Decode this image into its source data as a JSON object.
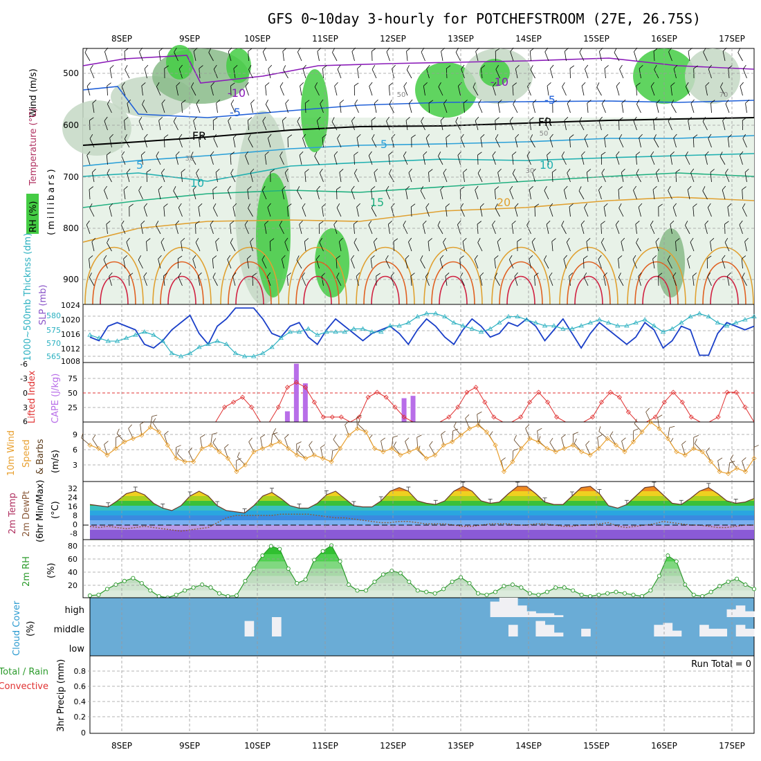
{
  "title": "GFS 0~10day 3-hourly for POTCHEFSTROOM (27E, 26.75S)",
  "days": [
    "8SEP",
    "9SEP",
    "10SEP",
    "11SEP",
    "12SEP",
    "13SEP",
    "14SEP",
    "15SEP",
    "16SEP",
    "17SEP"
  ],
  "colors": {
    "frame": "#000000",
    "grid": "#9a9a9a",
    "slp": "#1a3fc8",
    "thickness": "#2ab0c0",
    "lifted_index": "#e03030",
    "cape": "#b86ee8",
    "wind10m": "#e8a030",
    "barb": "#5a3a1a",
    "rh2m": "#2a9a2a",
    "dewpt": "#8a5a3a",
    "cloud_bg": "#6aacd6",
    "cloud": "#f0f0f4",
    "rh_shade_1": "#e8f2e8",
    "rh_shade_2": "#c4d8c4",
    "rh_shade_3": "#88bb88",
    "rh_shade_4": "#44cc44",
    "iso_m10": "#8a1ab8",
    "iso_m5": "#2060d8",
    "iso_fr": "#000000",
    "iso_5": "#2aa0d8",
    "iso_10": "#20b0b0",
    "iso_15": "#20b080",
    "iso_20": "#e0a030",
    "iso_25": "#e06020",
    "iso_30": "#d02040"
  },
  "upper": {
    "ylabel_wind": "Wind (m/s)",
    "ylabel_temp": "Temperature (°C)",
    "ylabel_rh": "RH (%)",
    "ylabel_mb": "(millibars)",
    "yticks": [
      "500",
      "600",
      "700",
      "800",
      "900"
    ],
    "contour_labels": [
      "-10",
      "-5",
      "FR",
      "5",
      "10",
      "15",
      "20",
      "-10",
      "-5",
      "FR",
      "5",
      "10",
      "50",
      "30",
      "50",
      "30",
      "70",
      "-5",
      "5"
    ]
  },
  "panel1": {
    "ylabel_slp": "SLP (mb)",
    "ylabel_thick": "1000~500mb Thicknss (dm)",
    "left_ticks": [
      "580",
      "575",
      "570",
      "565"
    ],
    "right_ticks": [
      "1024",
      "1020",
      "1016",
      "1012",
      "1008"
    ]
  },
  "panel2": {
    "ylabel_li": "Lifted Index",
    "ylabel_cape": "CAPE (J/kg)",
    "left_ticks": [
      "-6",
      "-3",
      "0",
      "3",
      "6"
    ],
    "right_ticks": [
      "75",
      "50",
      "25"
    ]
  },
  "panel3": {
    "ylabel_wind": "10m Wind",
    "ylabel_speed": "Speed",
    "ylabel_barbs": "& Barbs",
    "units": "(m/s)",
    "ticks": [
      "9",
      "6",
      "3"
    ]
  },
  "panel4": {
    "ylabel_temp": "2m Temp",
    "ylabel_dew": "2m DewPt",
    "ylabel_minmax": "(6hr Min/Max)",
    "units": "(°C)",
    "ticks": [
      "32",
      "24",
      "16",
      "8",
      "0",
      "-8"
    ]
  },
  "panel5": {
    "ylabel": "2m RH",
    "units": "(%)",
    "ticks": [
      "80",
      "60",
      "40",
      "20"
    ]
  },
  "panel6": {
    "ylabel": "Cloud Cover",
    "units": "(%)",
    "ticks": [
      "high",
      "middle",
      "low"
    ]
  },
  "panel7": {
    "ylabel_total": "Total / Rain",
    "ylabel_conv": "Convective",
    "ylabel_precip": "3hr Precip (mm)",
    "ticks": [
      "0.8",
      "0.6",
      "0.4",
      "0.2",
      "0"
    ],
    "run_total": "Run Total = 0"
  },
  "chart_data": [
    {
      "type": "line",
      "title": "SLP (mb) / 1000~500mb Thicknss (dm)",
      "x": "3-hourly, 8SEP~17SEP",
      "series": [
        {
          "name": "SLP (mb)",
          "axis": "right",
          "ylim": [
            1008,
            1024
          ],
          "values": [
            1015,
            1014,
            1018,
            1019,
            1018,
            1017,
            1013,
            1012,
            1014,
            1017,
            1019,
            1021,
            1016,
            1013,
            1018,
            1020,
            1023,
            1023,
            1023,
            1020,
            1016,
            1015,
            1018,
            1019,
            1015,
            1013,
            1017,
            1020,
            1018,
            1016,
            1014,
            1016,
            1017,
            1018,
            1016,
            1013,
            1017,
            1020,
            1018,
            1015,
            1013,
            1017,
            1020,
            1018,
            1015,
            1016,
            1019,
            1018,
            1020,
            1018,
            1014,
            1017,
            1020,
            1016,
            1012,
            1016,
            1019,
            1017,
            1015,
            1013,
            1015,
            1019,
            1017,
            1012,
            1014,
            1018,
            1017,
            1010,
            1010,
            1016,
            1019,
            1018,
            1017,
            1018
          ]
        },
        {
          "name": "1000~500mb Thicknss (dm)",
          "axis": "left",
          "ylim": [
            563,
            582
          ],
          "values": [
            572,
            571,
            570,
            570,
            571,
            572,
            573,
            572,
            570,
            566,
            565,
            566,
            568,
            569,
            570,
            569,
            566,
            565,
            565,
            566,
            568,
            571,
            573,
            573,
            574,
            572,
            573,
            573,
            573,
            574,
            574,
            573,
            573,
            575,
            575,
            576,
            578,
            579,
            579,
            578,
            576,
            575,
            574,
            573,
            574,
            576,
            578,
            578,
            577,
            576,
            575,
            575,
            574,
            574,
            575,
            576,
            577,
            576,
            575,
            575,
            576,
            577,
            575,
            573,
            574,
            576,
            578,
            579,
            578,
            576,
            575,
            576,
            577,
            578
          ]
        }
      ]
    },
    {
      "type": "bar",
      "title": "Lifted Index / CAPE (J/kg)",
      "series": [
        {
          "name": "CAPE (J/kg)",
          "axis": "right",
          "ylim": [
            0,
            100
          ],
          "values": [
            0,
            0,
            0,
            0,
            0,
            0,
            0,
            0,
            0,
            0,
            0,
            0,
            0,
            0,
            0,
            0,
            0,
            0,
            0,
            0,
            0,
            0,
            18,
            98,
            65,
            0,
            0,
            0,
            0,
            0,
            0,
            0,
            0,
            0,
            0,
            40,
            44,
            0,
            0,
            0,
            0,
            0,
            0,
            0,
            0,
            0,
            0,
            0,
            0,
            0,
            0,
            0,
            0,
            0,
            0,
            0,
            0,
            0,
            0,
            0,
            0,
            0,
            0,
            0,
            0,
            0,
            0,
            0,
            0,
            0,
            0,
            0,
            0,
            0,
            0
          ]
        },
        {
          "name": "Lifted Index",
          "axis": "left",
          "ylim": [
            6,
            -6
          ],
          "values": [
            6,
            6,
            6,
            6,
            6,
            6,
            6,
            6,
            6,
            6,
            6,
            6,
            6,
            6,
            6,
            3,
            2,
            1,
            3,
            6,
            6,
            3,
            -1,
            -2,
            -1,
            2,
            5,
            5,
            5,
            6,
            5,
            1,
            0,
            1,
            3,
            5,
            6,
            6,
            6,
            6,
            5,
            3,
            0,
            -1,
            2,
            5,
            6,
            6,
            5,
            2,
            0,
            2,
            5,
            6,
            6,
            6,
            5,
            2,
            0,
            1,
            4,
            6,
            6,
            5,
            2,
            0,
            2,
            5,
            6,
            6,
            5,
            0,
            0,
            3,
            6
          ]
        }
      ]
    },
    {
      "type": "line",
      "title": "10m Wind Speed & Barbs (m/s)",
      "ylim": [
        1,
        10
      ],
      "series": [
        {
          "name": "10m Wind Speed",
          "values": [
            6.5,
            6,
            5,
            6,
            7,
            7.5,
            8,
            9.2,
            8.5,
            6.5,
            4.5,
            4,
            4,
            6,
            6.5,
            5.5,
            4.5,
            2.5,
            3.5,
            5.5,
            6,
            6.5,
            7,
            6,
            5,
            4.5,
            5,
            4.5,
            4,
            6,
            8,
            9,
            8.5,
            6,
            5.5,
            6,
            5,
            5.5,
            6,
            4.5,
            5,
            6.5,
            7,
            8,
            9,
            9.5,
            8.5,
            6.5,
            2.5,
            4,
            6,
            7.5,
            7,
            6,
            5.5,
            6,
            6.5,
            5.5,
            5,
            6,
            7.5,
            6.5,
            5.5,
            7,
            8.5,
            10,
            9,
            7.5,
            5.5,
            5,
            6,
            5.5,
            4,
            2.5,
            2.2,
            3,
            2.5,
            4.5
          ]
        }
      ]
    },
    {
      "type": "area",
      "title": "2m Temp / 2m DewPt (6hr Min/Max) (°C)",
      "ylim": [
        -12,
        36
      ],
      "series": [
        {
          "name": "2m Temp",
          "values": [
            17,
            16,
            15,
            20,
            26,
            28,
            25,
            18,
            14,
            12,
            16,
            24,
            28,
            24,
            16,
            12,
            11,
            10,
            16,
            24,
            27,
            22,
            16,
            14,
            14,
            18,
            25,
            28,
            22,
            16,
            15,
            15,
            20,
            28,
            31,
            28,
            20,
            18,
            17,
            20,
            28,
            32,
            28,
            20,
            18,
            19,
            26,
            32,
            32,
            26,
            19,
            17,
            17,
            24,
            31,
            32,
            26,
            16,
            14,
            17,
            24,
            31,
            32,
            25,
            18,
            17,
            22,
            28,
            31,
            26,
            20,
            18,
            19,
            22
          ]
        },
        {
          "name": "2m DewPt",
          "values": [
            -1,
            -2,
            -1,
            -2,
            -3,
            -2,
            -1,
            -2,
            -3,
            -4,
            -5,
            -4,
            -3,
            -2,
            2,
            6,
            8,
            8,
            8,
            8,
            8,
            9,
            9,
            9,
            9,
            8,
            7,
            6,
            6,
            5,
            4,
            3,
            2,
            2,
            3,
            3,
            2,
            1,
            1,
            1,
            0,
            -1,
            -1,
            0,
            1,
            1,
            1,
            0,
            0,
            1,
            1,
            0,
            -1,
            -1,
            0,
            0,
            1,
            2,
            -1,
            -2,
            -1,
            0,
            1,
            3,
            2,
            1,
            0,
            0,
            -1,
            -2,
            -2,
            -1,
            0,
            0
          ]
        }
      ]
    },
    {
      "type": "area",
      "title": "2m RH (%)",
      "ylim": [
        10,
        90
      ],
      "series": [
        {
          "name": "2m RH",
          "values": [
            13,
            14,
            22,
            28,
            33,
            37,
            30,
            20,
            12,
            10,
            14,
            20,
            24,
            28,
            24,
            16,
            12,
            13,
            33,
            50,
            68,
            81,
            77,
            50,
            30,
            35,
            62,
            74,
            82,
            60,
            28,
            20,
            20,
            32,
            42,
            47,
            44,
            32,
            20,
            18,
            16,
            22,
            32,
            38,
            30,
            16,
            14,
            18,
            26,
            28,
            24,
            16,
            14,
            18,
            24,
            24,
            20,
            14,
            12,
            14,
            16,
            18,
            16,
            14,
            12,
            20,
            40,
            68,
            60,
            28,
            14,
            12,
            18,
            26,
            32,
            36,
            28,
            22
          ]
        }
      ]
    },
    {
      "type": "bar",
      "title": "Cloud Cover (%)",
      "series": [
        {
          "name": "high",
          "values": [
            0,
            0,
            0,
            0,
            0,
            0,
            0,
            0,
            0,
            0,
            0,
            0,
            0,
            0,
            0,
            0,
            0,
            0,
            0,
            0,
            0,
            0,
            0,
            0,
            0,
            0,
            0,
            0,
            0,
            0,
            0,
            0,
            0,
            0,
            0,
            0,
            0,
            0,
            0,
            0,
            0,
            0,
            0,
            0,
            80,
            100,
            100,
            60,
            30,
            20,
            20,
            10,
            0,
            0,
            0,
            0,
            0,
            0,
            0,
            0,
            0,
            0,
            0,
            0,
            0,
            0,
            0,
            0,
            0,
            0,
            40,
            60,
            30
          ]
        },
        {
          "name": "middle",
          "values": [
            0,
            0,
            0,
            0,
            0,
            0,
            0,
            0,
            0,
            0,
            0,
            0,
            0,
            0,
            0,
            0,
            0,
            80,
            0,
            0,
            100,
            0,
            0,
            0,
            0,
            0,
            0,
            0,
            0,
            0,
            0,
            0,
            0,
            0,
            0,
            0,
            0,
            0,
            0,
            0,
            0,
            0,
            0,
            0,
            0,
            0,
            60,
            0,
            0,
            80,
            60,
            20,
            0,
            0,
            40,
            0,
            0,
            0,
            0,
            0,
            0,
            0,
            60,
            70,
            30,
            0,
            0,
            60,
            40,
            40,
            0,
            60,
            40
          ]
        }
      ]
    },
    {
      "type": "line",
      "title": "3hr Precip (mm)",
      "ylim": [
        0,
        0.9
      ],
      "series": [
        {
          "name": "Total / Rain",
          "values": [
            0,
            0,
            0,
            0,
            0,
            0,
            0,
            0,
            0,
            0
          ]
        },
        {
          "name": "Convective",
          "values": [
            0,
            0,
            0,
            0,
            0,
            0,
            0,
            0,
            0,
            0
          ]
        }
      ]
    }
  ]
}
